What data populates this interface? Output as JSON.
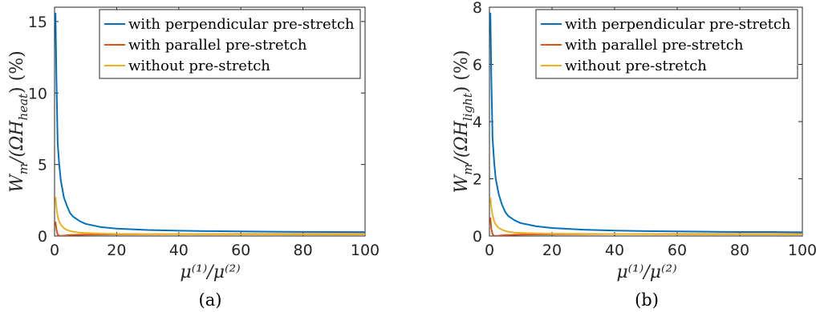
{
  "chart_data": [
    {
      "type": "line",
      "panel_label": "(a)",
      "xlabel": "μ⁽¹⁾/μ⁽²⁾",
      "ylabel": "W_m/(ΩH_heat) (%)",
      "ylabel_parts": {
        "main": "W",
        "sub1": "m",
        "mid": "/(ΩH",
        "sub2": "heat",
        "tail": ")  (%)"
      },
      "xlim": [
        0,
        100
      ],
      "ylim": [
        0,
        16
      ],
      "xticks": [
        "0",
        "20",
        "40",
        "60",
        "80",
        "100"
      ],
      "yticks": [
        "0",
        "5",
        "10",
        "15"
      ],
      "ytick_values": [
        0,
        5,
        10,
        15
      ],
      "legend_position": "top-right",
      "series": [
        {
          "name": "with perpendicular pre-stretch",
          "color": "#0072BD",
          "x": [
            0.3,
            0.6,
            1,
            1.5,
            2,
            3,
            4,
            5,
            6,
            8,
            10,
            15,
            20,
            30,
            40,
            50,
            60,
            70,
            80,
            90,
            100
          ],
          "y": [
            15.6,
            11.0,
            6.5,
            5.0,
            3.9,
            2.7,
            2.1,
            1.6,
            1.35,
            1.05,
            0.85,
            0.62,
            0.52,
            0.42,
            0.37,
            0.34,
            0.32,
            0.3,
            0.29,
            0.28,
            0.27
          ]
        },
        {
          "name": "with parallel pre-stretch",
          "color": "#D95319",
          "x": [
            0.3,
            0.6,
            1,
            1.5,
            2,
            3,
            5,
            10,
            20,
            40,
            60,
            80,
            100
          ],
          "y": [
            1.0,
            0.45,
            0.1,
            0.02,
            0.01,
            0.03,
            0.07,
            0.1,
            0.12,
            0.13,
            0.14,
            0.14,
            0.14
          ]
        },
        {
          "name": "without pre-stretch",
          "color": "#EDB120",
          "x": [
            0.3,
            0.6,
            1,
            1.5,
            2,
            3,
            4,
            5,
            6,
            8,
            10,
            15,
            20,
            40,
            60,
            80,
            100
          ],
          "y": [
            2.75,
            2.0,
            1.4,
            1.0,
            0.8,
            0.55,
            0.42,
            0.35,
            0.3,
            0.24,
            0.21,
            0.17,
            0.15,
            0.13,
            0.12,
            0.11,
            0.11
          ]
        }
      ]
    },
    {
      "type": "line",
      "panel_label": "(b)",
      "xlabel": "μ⁽¹⁾/μ⁽²⁾",
      "ylabel": "W_m/(ΩH_light) (%)",
      "ylabel_parts": {
        "main": "W",
        "sub1": "m",
        "mid": "/(ΩH",
        "sub2": "light",
        "tail": ")  (%)"
      },
      "xlim": [
        0,
        100
      ],
      "ylim": [
        0,
        8
      ],
      "xticks": [
        "0",
        "20",
        "40",
        "60",
        "80",
        "100"
      ],
      "yticks": [
        "0",
        "2",
        "4",
        "6",
        "8"
      ],
      "ytick_values": [
        0,
        2,
        4,
        6,
        8
      ],
      "legend_position": "top-right",
      "series": [
        {
          "name": "with perpendicular pre-stretch",
          "color": "#0072BD",
          "x": [
            0.3,
            0.6,
            1,
            1.5,
            2,
            3,
            4,
            5,
            6,
            8,
            10,
            15,
            20,
            30,
            40,
            50,
            60,
            70,
            80,
            90,
            100
          ],
          "y": [
            7.8,
            5.5,
            3.4,
            2.6,
            2.0,
            1.45,
            1.1,
            0.85,
            0.7,
            0.55,
            0.45,
            0.34,
            0.28,
            0.22,
            0.19,
            0.17,
            0.16,
            0.15,
            0.14,
            0.14,
            0.13
          ]
        },
        {
          "name": "with parallel pre-stretch",
          "color": "#D95319",
          "x": [
            0.3,
            0.6,
            1,
            1.5,
            2,
            3,
            5,
            10,
            20,
            40,
            60,
            80,
            100
          ],
          "y": [
            0.65,
            0.25,
            0.06,
            0.01,
            0.0,
            0.01,
            0.03,
            0.05,
            0.06,
            0.07,
            0.07,
            0.07,
            0.07
          ]
        },
        {
          "name": "without pre-stretch",
          "color": "#EDB120",
          "x": [
            0.3,
            0.6,
            1,
            1.5,
            2,
            3,
            4,
            5,
            6,
            8,
            10,
            15,
            20,
            40,
            60,
            80,
            100
          ],
          "y": [
            1.35,
            1.0,
            0.72,
            0.52,
            0.4,
            0.28,
            0.22,
            0.18,
            0.15,
            0.12,
            0.11,
            0.09,
            0.08,
            0.07,
            0.06,
            0.06,
            0.06
          ]
        }
      ]
    }
  ]
}
